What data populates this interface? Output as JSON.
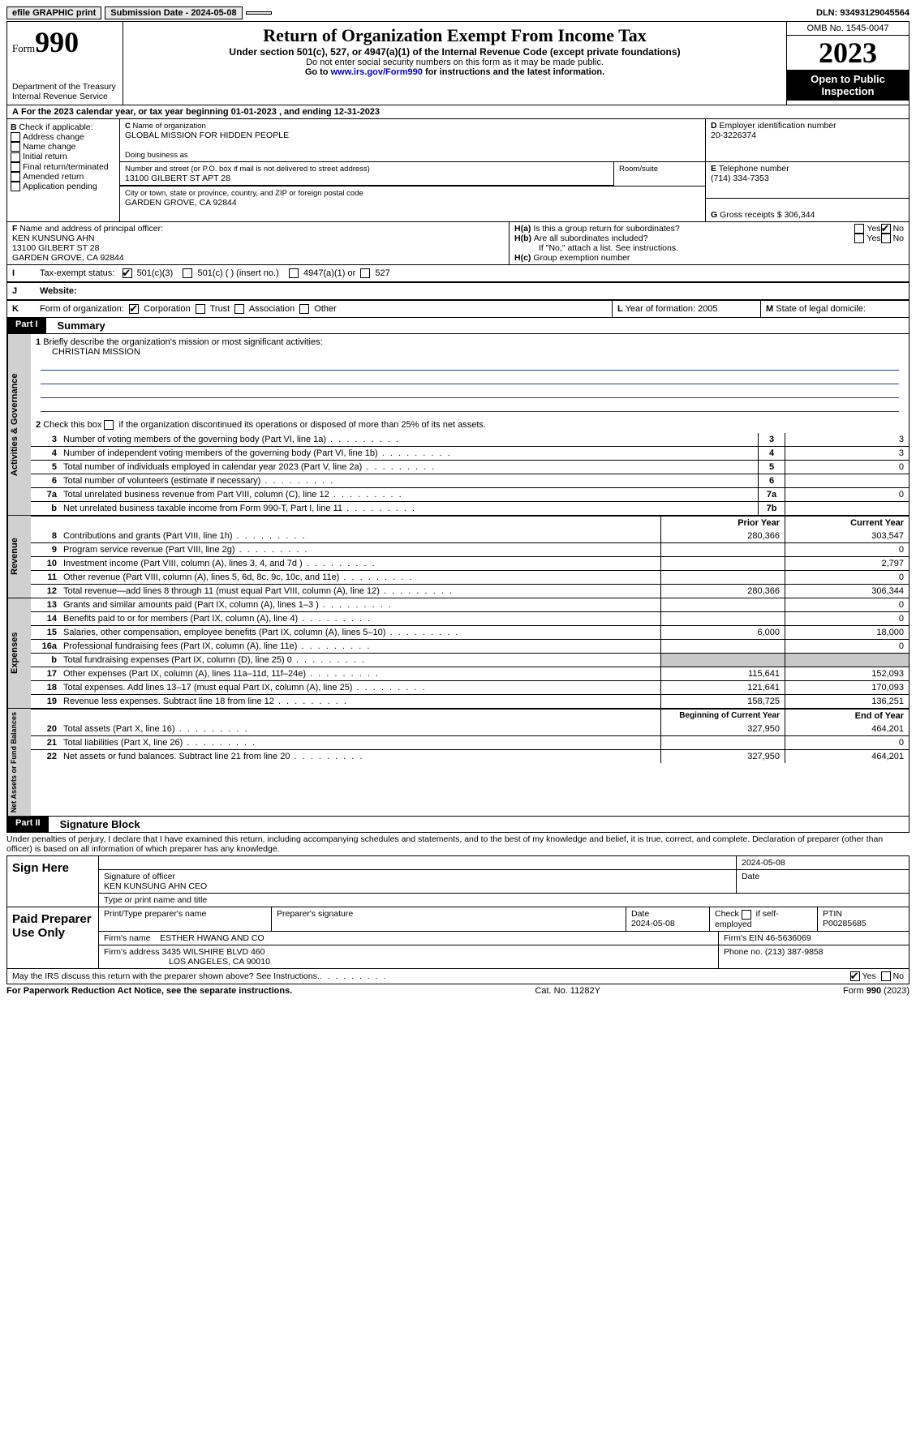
{
  "topbar": {
    "efile": "efile GRAPHIC print",
    "submission": "Submission Date - 2024-05-08",
    "dln": "DLN: 93493129045564"
  },
  "header": {
    "form_label": "Form",
    "form_num": "990",
    "dept": "Department of the Treasury",
    "irs": "Internal Revenue Service",
    "title": "Return of Organization Exempt From Income Tax",
    "sub1": "Under section 501(c), 527, or 4947(a)(1) of the Internal Revenue Code (except private foundations)",
    "sub2": "Do not enter social security numbers on this form as it may be made public.",
    "sub3_pre": "Go to ",
    "sub3_link": "www.irs.gov/Form990",
    "sub3_post": " for instructions and the latest information.",
    "omb": "OMB No. 1545-0047",
    "year": "2023",
    "open": "Open to Public Inspection"
  },
  "lineA": "For the 2023 calendar year, or tax year beginning 01-01-2023   , and ending 12-31-2023",
  "boxB": {
    "hdr": "Check if applicable:",
    "addr": "Address change",
    "name": "Name change",
    "init": "Initial return",
    "final": "Final return/terminated",
    "amend": "Amended return",
    "app": "Application pending"
  },
  "boxC": {
    "name_lbl": "Name of organization",
    "name": "GLOBAL MISSION FOR HIDDEN PEOPLE",
    "dba_lbl": "Doing business as",
    "street_lbl": "Number and street (or P.O. box if mail is not delivered to street address)",
    "street": "13100 GILBERT ST APT 28",
    "room_lbl": "Room/suite",
    "city_lbl": "City or town, state or province, country, and ZIP or foreign postal code",
    "city": "GARDEN GROVE, CA  92844"
  },
  "boxD": {
    "lbl": "Employer identification number",
    "val": "20-3226374"
  },
  "boxE": {
    "lbl": "Telephone number",
    "val": "(714) 334-7353"
  },
  "boxG": {
    "lbl": "Gross receipts $",
    "val": "306,344"
  },
  "boxF": {
    "lbl": "Name and address of principal officer:",
    "l1": "KEN KUNSUNG AHN",
    "l2": "13100 GILBERT ST 28",
    "l3": "GARDEN GROVE, CA  92844"
  },
  "boxH": {
    "a": "Is this a group return for subordinates?",
    "b": "Are all subordinates included?",
    "bno": "If \"No,\" attach a list. See instructions.",
    "c": "Group exemption number"
  },
  "rowI": {
    "lbl": "Tax-exempt status:",
    "o1": "501(c)(3)",
    "o2": "501(c) (  ) (insert no.)",
    "o3": "4947(a)(1) or",
    "o4": "527"
  },
  "rowJ": {
    "lbl": "Website:"
  },
  "rowK": {
    "lbl": "Form of organization:",
    "c": "Corporation",
    "t": "Trust",
    "a": "Association",
    "o": "Other"
  },
  "rowL": {
    "lbl": "Year of formation:",
    "val": "2005"
  },
  "rowM": {
    "lbl": "State of legal domicile:"
  },
  "partI": {
    "hdr": "Part I",
    "title": "Summary"
  },
  "s1": {
    "num": "1",
    "desc": "Briefly describe the organization's mission or most significant activities:",
    "val": "CHRISTIAN MISSION"
  },
  "s2": {
    "num": "2",
    "desc": "Check this box      if the organization discontinued its operations or disposed of more than 25% of its net assets."
  },
  "gov_lines": [
    {
      "n": "3",
      "d": "Number of voting members of the governing body (Part VI, line 1a)",
      "box": "3",
      "v": "3"
    },
    {
      "n": "4",
      "d": "Number of independent voting members of the governing body (Part VI, line 1b)",
      "box": "4",
      "v": "3"
    },
    {
      "n": "5",
      "d": "Total number of individuals employed in calendar year 2023 (Part V, line 2a)",
      "box": "5",
      "v": "0"
    },
    {
      "n": "6",
      "d": "Total number of volunteers (estimate if necessary)",
      "box": "6",
      "v": ""
    },
    {
      "n": "7a",
      "d": "Total unrelated business revenue from Part VIII, column (C), line 12",
      "box": "7a",
      "v": "0"
    },
    {
      "n": "b",
      "d": "Net unrelated business taxable income from Form 990-T, Part I, line 11",
      "box": "7b",
      "v": ""
    }
  ],
  "colhdr": {
    "prior": "Prior Year",
    "curr": "Current Year",
    "beg": "Beginning of Current Year",
    "end": "End of Year"
  },
  "rev_lines": [
    {
      "n": "8",
      "d": "Contributions and grants (Part VIII, line 1h)",
      "p": "280,366",
      "c": "303,547"
    },
    {
      "n": "9",
      "d": "Program service revenue (Part VIII, line 2g)",
      "p": "",
      "c": "0"
    },
    {
      "n": "10",
      "d": "Investment income (Part VIII, column (A), lines 3, 4, and 7d )",
      "p": "",
      "c": "2,797"
    },
    {
      "n": "11",
      "d": "Other revenue (Part VIII, column (A), lines 5, 6d, 8c, 9c, 10c, and 11e)",
      "p": "",
      "c": "0"
    },
    {
      "n": "12",
      "d": "Total revenue—add lines 8 through 11 (must equal Part VIII, column (A), line 12)",
      "p": "280,366",
      "c": "306,344"
    }
  ],
  "exp_lines": [
    {
      "n": "13",
      "d": "Grants and similar amounts paid (Part IX, column (A), lines 1–3 )",
      "p": "",
      "c": "0"
    },
    {
      "n": "14",
      "d": "Benefits paid to or for members (Part IX, column (A), line 4)",
      "p": "",
      "c": "0"
    },
    {
      "n": "15",
      "d": "Salaries, other compensation, employee benefits (Part IX, column (A), lines 5–10)",
      "p": "6,000",
      "c": "18,000"
    },
    {
      "n": "16a",
      "d": "Professional fundraising fees (Part IX, column (A), line 11e)",
      "p": "",
      "c": "0"
    },
    {
      "n": "b",
      "d": "Total fundraising expenses (Part IX, column (D), line 25) 0",
      "p": "shade",
      "c": "shade"
    },
    {
      "n": "17",
      "d": "Other expenses (Part IX, column (A), lines 11a–11d, 11f–24e)",
      "p": "115,641",
      "c": "152,093"
    },
    {
      "n": "18",
      "d": "Total expenses. Add lines 13–17 (must equal Part IX, column (A), line 25)",
      "p": "121,641",
      "c": "170,093"
    },
    {
      "n": "19",
      "d": "Revenue less expenses. Subtract line 18 from line 12",
      "p": "158,725",
      "c": "136,251"
    }
  ],
  "net_lines": [
    {
      "n": "20",
      "d": "Total assets (Part X, line 16)",
      "p": "327,950",
      "c": "464,201"
    },
    {
      "n": "21",
      "d": "Total liabilities (Part X, line 26)",
      "p": "",
      "c": "0"
    },
    {
      "n": "22",
      "d": "Net assets or fund balances. Subtract line 21 from line 20",
      "p": "327,950",
      "c": "464,201"
    }
  ],
  "partII": {
    "hdr": "Part II",
    "title": "Signature Block"
  },
  "perjury": "Under penalties of perjury, I declare that I have examined this return, including accompanying schedules and statements, and to the best of my knowledge and belief, it is true, correct, and complete. Declaration of preparer (other than officer) is based on all information of which preparer has any knowledge.",
  "sign": {
    "here": "Sign Here",
    "sig_lbl": "Signature of officer",
    "date_lbl": "Date",
    "sig_date": "2024-05-08",
    "name": "KEN KUNSUNG AHN  CEO",
    "name_lbl": "Type or print name and title"
  },
  "paid": {
    "hdr": "Paid Preparer Use Only",
    "prep_name_lbl": "Print/Type preparer's name",
    "prep_sig_lbl": "Preparer's signature",
    "date_lbl": "Date",
    "date": "2024-05-08",
    "self_lbl": "Check       if self-employed",
    "ptin_lbl": "PTIN",
    "ptin": "P00285685",
    "firm_name_lbl": "Firm's name",
    "firm_name": "ESTHER HWANG AND CO",
    "firm_ein_lbl": "Firm's EIN",
    "firm_ein": "46-5636069",
    "firm_addr_lbl": "Firm's address",
    "firm_addr1": "3435 WILSHIRE BLVD 460",
    "firm_addr2": "LOS ANGELES, CA  90010",
    "phone_lbl": "Phone no.",
    "phone": "(213) 387-9858"
  },
  "discuss": "May the IRS discuss this return with the preparer shown above? See Instructions.",
  "footer": {
    "left": "For Paperwork Reduction Act Notice, see the separate instructions.",
    "mid": "Cat. No. 11282Y",
    "right_pre": "Form ",
    "right_b": "990",
    "right_post": " (2023)"
  },
  "labels": {
    "yes": "Yes",
    "no": "No",
    "B": "B",
    "C": "C",
    "D": "D",
    "E": "E",
    "F": "F",
    "G": "G",
    "Ha": "H(a)",
    "Hb": "H(b)",
    "Hc": "H(c)",
    "I": "I",
    "J": "J",
    "K": "K",
    "L": "L",
    "M": "M",
    "A": "A",
    "gov": "Activities & Governance",
    "rev": "Revenue",
    "exp": "Expenses",
    "net": "Net Assets or Fund Balances"
  }
}
